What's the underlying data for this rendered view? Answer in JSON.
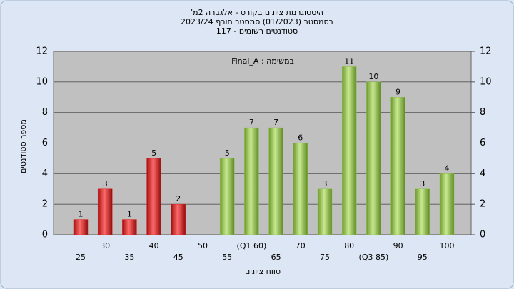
{
  "chart_data": {
    "type": "bar",
    "title": "היסטוגרמת ציונים בקורס - אלגברה 2מ'",
    "subtitle": "בסמסטר (01/2023) סמסטר חורף 2023/24",
    "subtitle2": "סטודנטים רשומים - 117",
    "annotation": "במשימה : Final_A",
    "x_label": "טווח ציונים",
    "y_label": "מספר סטודנטים",
    "categories": [
      "25",
      "30",
      "35",
      "40",
      "45",
      "50",
      "55",
      "(Q1 60)",
      "65",
      "70",
      "75",
      "80",
      "(Q3 85)",
      "90",
      "95",
      "100"
    ],
    "values": [
      1,
      3,
      1,
      5,
      2,
      0,
      5,
      7,
      7,
      6,
      3,
      11,
      10,
      9,
      3,
      4
    ],
    "colors": [
      "#e02020",
      "#e02020",
      "#e02020",
      "#e02020",
      "#e02020",
      "#e02020",
      "#8cc04a",
      "#8cc04a",
      "#8cc04a",
      "#8cc04a",
      "#8cc04a",
      "#8cc04a",
      "#8cc04a",
      "#8cc04a",
      "#8cc04a",
      "#8cc04a"
    ],
    "ylim": [
      0,
      12
    ],
    "yticks": [
      0,
      2,
      4,
      6,
      8,
      10,
      12
    ],
    "y2lim": [
      0,
      12
    ],
    "y2ticks": [
      0,
      2,
      4,
      6,
      8,
      10,
      12
    ],
    "grid": true
  }
}
